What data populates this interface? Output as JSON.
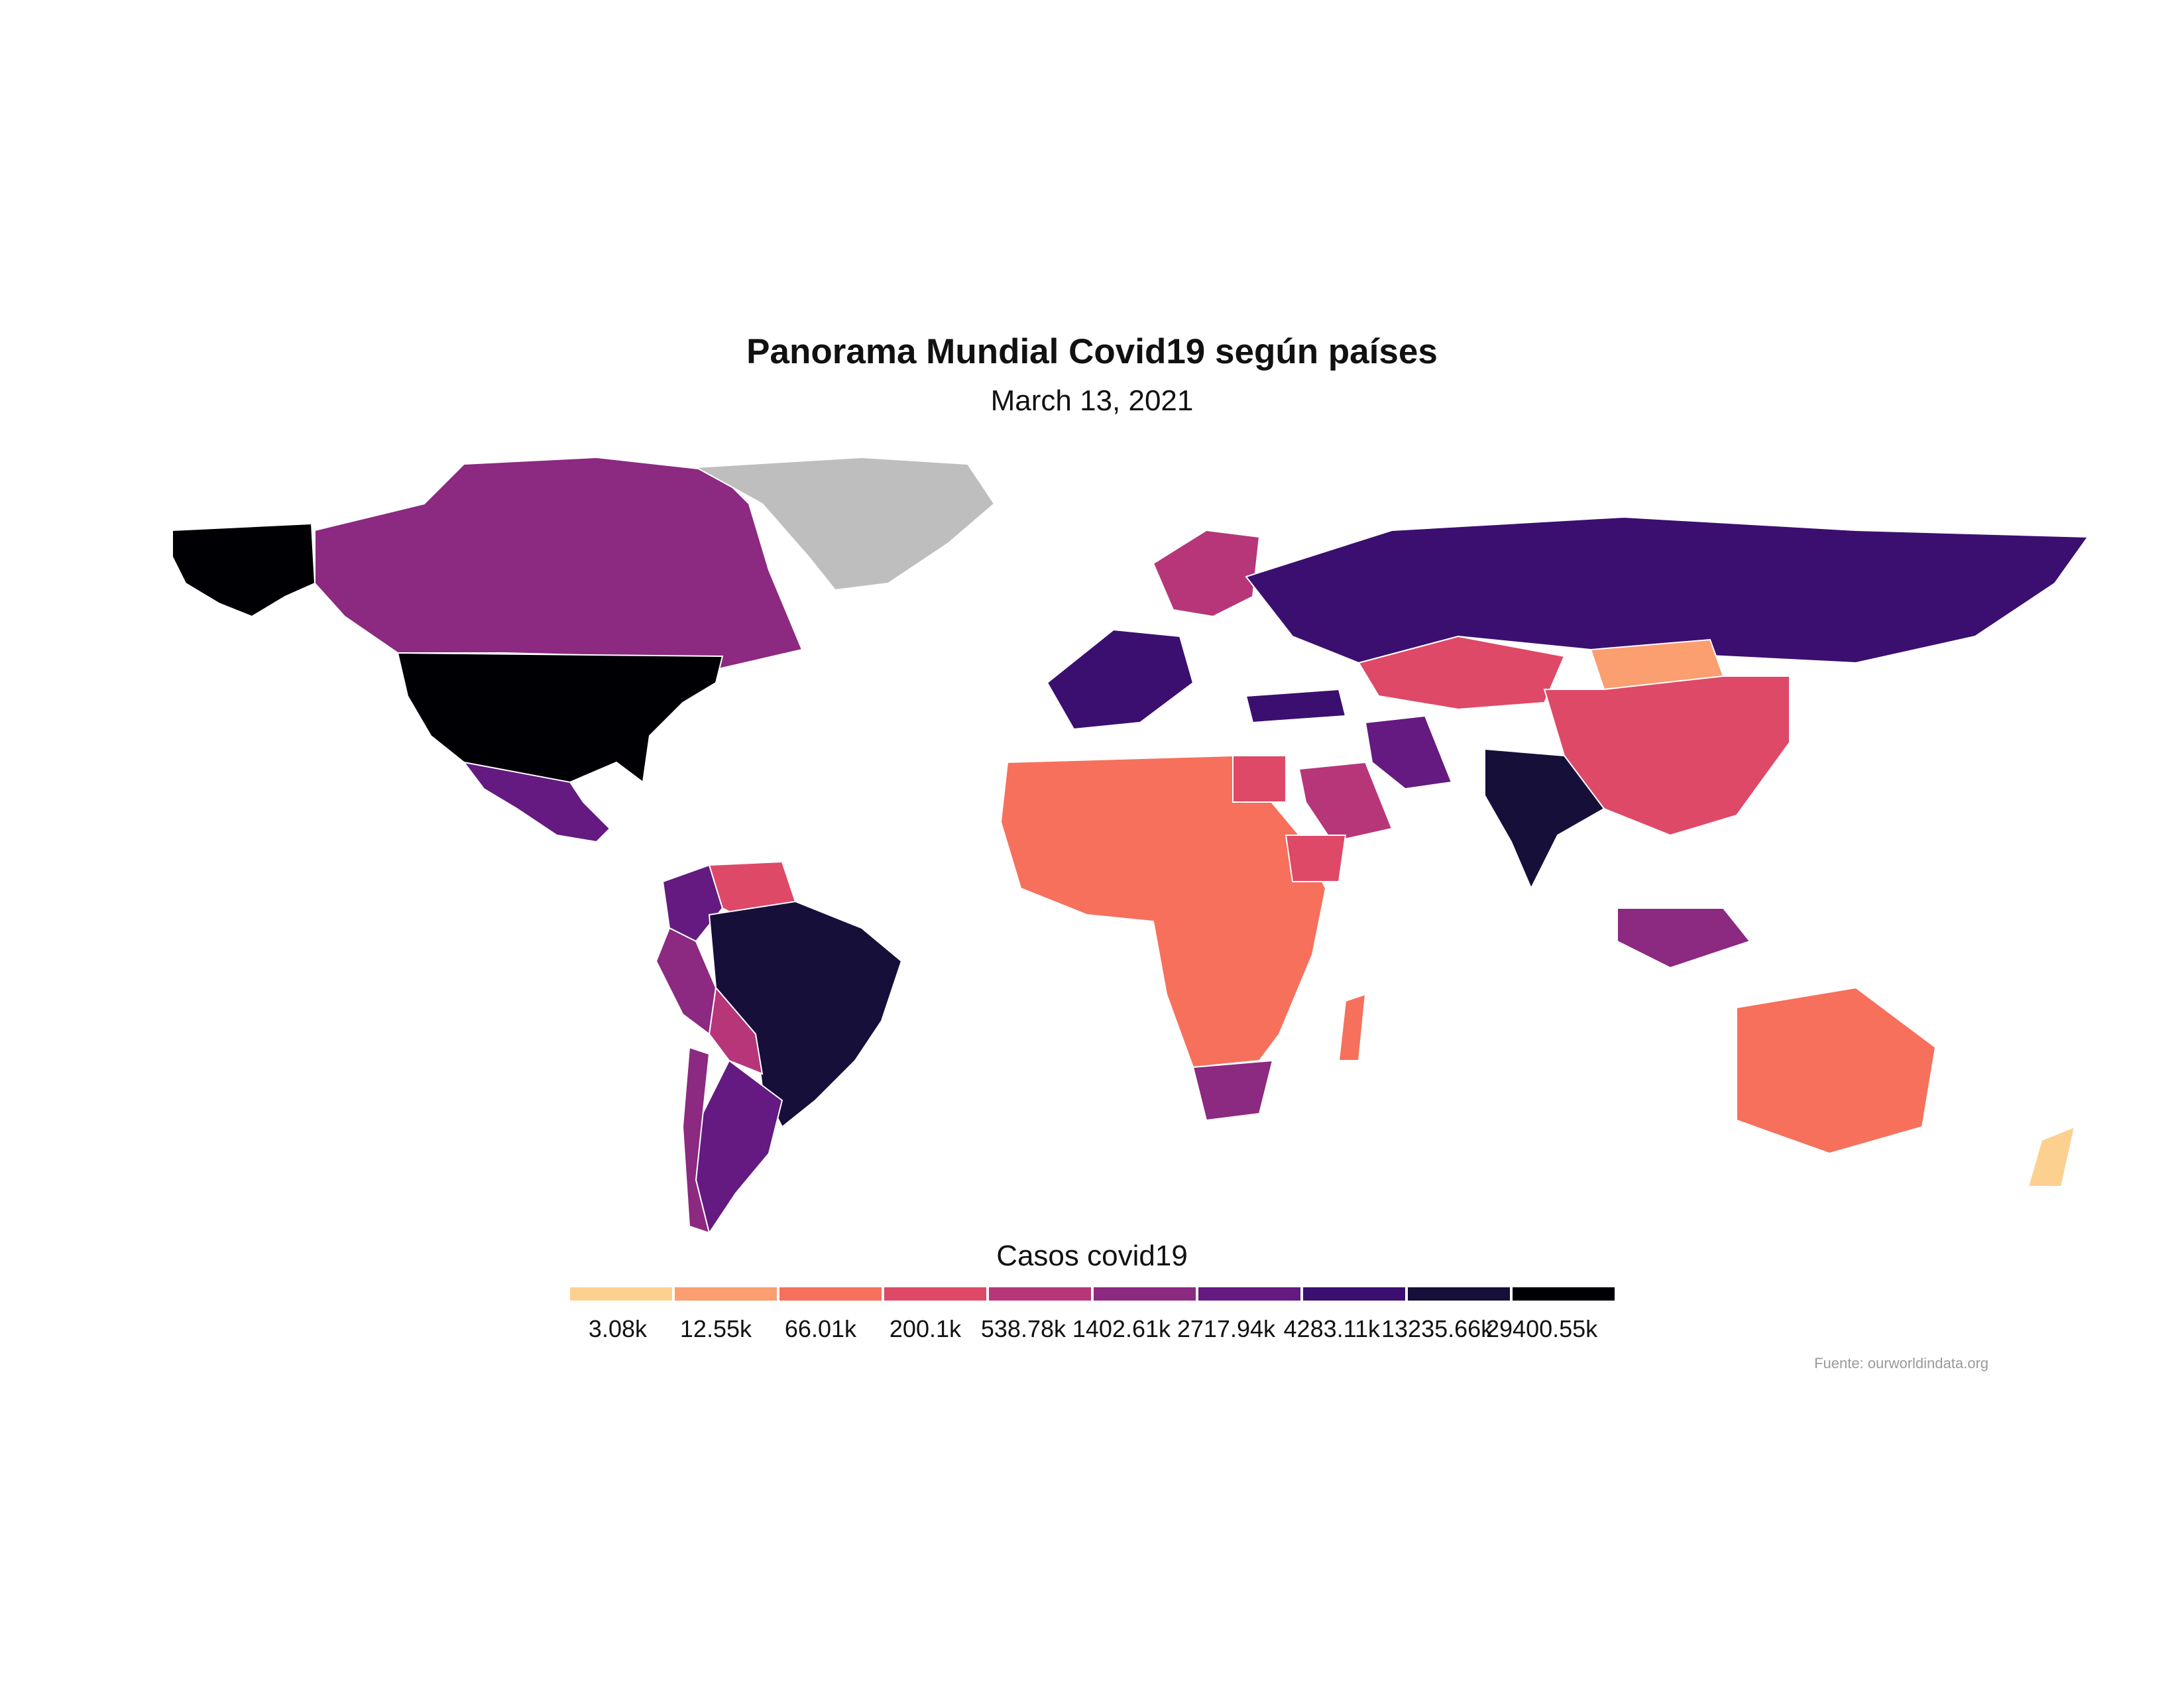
{
  "figure": {
    "title": "Panorama Mundial Covid19 según países",
    "subtitle": "March 13, 2021",
    "source": "Fuente: ourworldindata.org"
  },
  "legend": {
    "title": "Casos covid19",
    "bins": [
      {
        "label": "3.08k",
        "color": "#fcd190"
      },
      {
        "label": "12.55k",
        "color": "#fb9e70"
      },
      {
        "label": "66.01k",
        "color": "#f6705c"
      },
      {
        "label": "200.1k",
        "color": "#de4968"
      },
      {
        "label": "538.78k",
        "color": "#b7367a"
      },
      {
        "label": "1402.61k",
        "color": "#8c2981"
      },
      {
        "label": "2717.94k",
        "color": "#641a80"
      },
      {
        "label": "4283.11k",
        "color": "#3b0f70"
      },
      {
        "label": "13235.66k",
        "color": "#160f3a"
      },
      {
        "label": "29400.55k",
        "color": "#000004"
      }
    ],
    "no_data_color": "#bebebe"
  },
  "chart_data": {
    "type": "choropleth",
    "title": "Panorama Mundial Covid19 según países",
    "subtitle": "March 13, 2021",
    "value_label": "Casos covid19",
    "scale_breaks": [
      "3.08k",
      "12.55k",
      "66.01k",
      "200.1k",
      "538.78k",
      "1402.61k",
      "2717.94k",
      "4283.11k",
      "13235.66k",
      "29400.55k"
    ],
    "regions": [
      {
        "name": "United States",
        "bin": "29400.55k"
      },
      {
        "name": "Alaska",
        "bin": "29400.55k"
      },
      {
        "name": "Canada",
        "bin": "1402.61k"
      },
      {
        "name": "Greenland",
        "bin": "no data"
      },
      {
        "name": "Mexico",
        "bin": "2717.94k"
      },
      {
        "name": "Brazil",
        "bin": "13235.66k"
      },
      {
        "name": "Colombia",
        "bin": "2717.94k"
      },
      {
        "name": "Peru",
        "bin": "1402.61k"
      },
      {
        "name": "Argentina",
        "bin": "2717.94k"
      },
      {
        "name": "Chile",
        "bin": "1402.61k"
      },
      {
        "name": "Bolivia",
        "bin": "538.78k"
      },
      {
        "name": "Venezuela",
        "bin": "200.1k"
      },
      {
        "name": "Russia",
        "bin": "4283.11k"
      },
      {
        "name": "Kazakhstan",
        "bin": "200.1k"
      },
      {
        "name": "China",
        "bin": "200.1k"
      },
      {
        "name": "Mongolia",
        "bin": "12.55k"
      },
      {
        "name": "India",
        "bin": "13235.66k"
      },
      {
        "name": "Iran",
        "bin": "2717.94k"
      },
      {
        "name": "Turkey",
        "bin": "4283.11k"
      },
      {
        "name": "Saudi Arabia",
        "bin": "538.78k"
      },
      {
        "name": "Indonesia",
        "bin": "1402.61k"
      },
      {
        "name": "Australia",
        "bin": "66.01k"
      },
      {
        "name": "New Zealand",
        "bin": "3.08k"
      },
      {
        "name": "South Africa",
        "bin": "1402.61k"
      },
      {
        "name": "Egypt",
        "bin": "200.1k"
      },
      {
        "name": "Ethiopia",
        "bin": "200.1k"
      },
      {
        "name": "Madagascar",
        "bin": "66.01k"
      },
      {
        "name": "Western Europe",
        "bin": "4283.11k"
      },
      {
        "name": "Scandinavia",
        "bin": "538.78k"
      }
    ]
  }
}
